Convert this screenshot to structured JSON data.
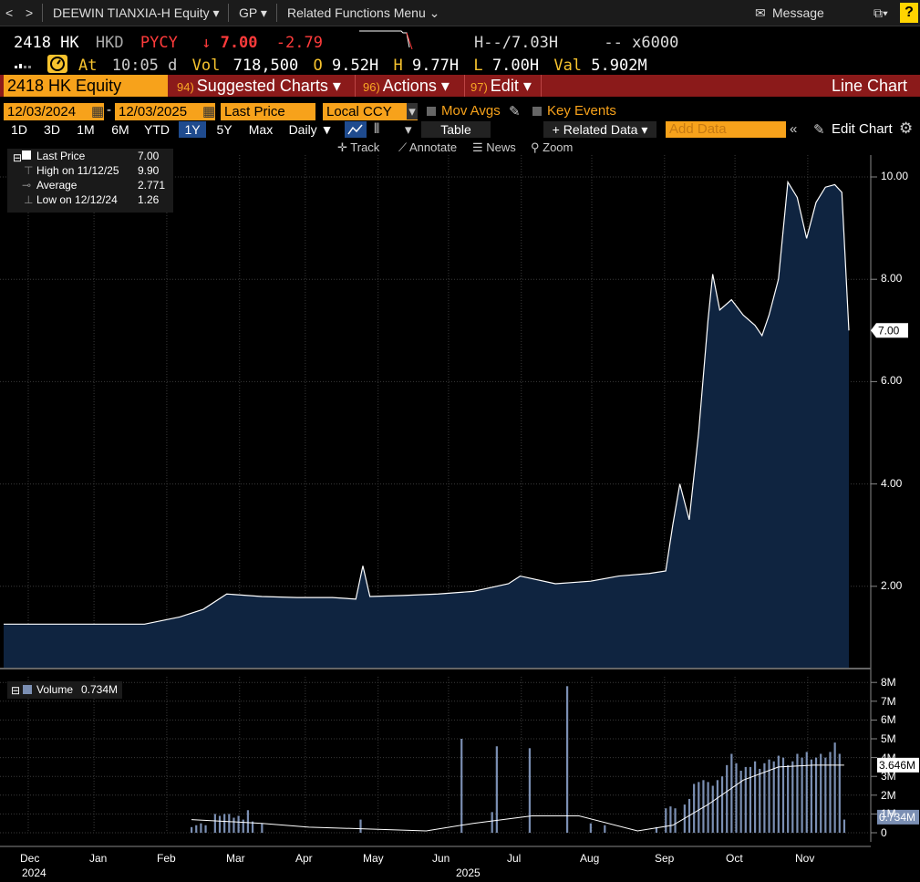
{
  "topbar": {
    "back": "<",
    "forward": ">",
    "security": "DEEWIN TIANXIA-H Equity ▾",
    "gp": "GP ▾",
    "related_menu": "Related Functions Menu ⌄",
    "message": "Message",
    "help": "?"
  },
  "quote": {
    "ticker": "2418 HK",
    "currency": "HKD",
    "pycy": "PYCY",
    "arrow": "↓",
    "last": "7.00",
    "change": "-2.79",
    "h_label": "H--",
    "bid_ask": "/7.03H",
    "size_label": "--",
    "size": "x6000",
    "at_label": "At",
    "time": "10:05 d",
    "vol_label": "Vol",
    "vol": "718,500",
    "o_label": "O",
    "open": "9.52H",
    "hi_label": "H",
    "high": "9.77H",
    "l_label": "L",
    "low": "7.00H",
    "val_label": "Val",
    "val": "5.902M"
  },
  "toolbar": {
    "equity": "2418 HK Equity",
    "suggested_num": "94)",
    "suggested": "Suggested Charts ▾",
    "actions_num": "96)",
    "actions": "Actions ▾",
    "edit_num": "97)",
    "edit": "Edit ▾",
    "chart_type": "Line Chart"
  },
  "controls": {
    "start_date": "12/03/2024",
    "end_date": "12/03/2025",
    "field": "Last Price",
    "currency": "Local CCY",
    "mov_avgs": "Mov Avgs",
    "key_events": "Key Events",
    "table": "Table",
    "related_data": "+ Related Data ▾",
    "add_data_placeholder": "Add Data",
    "edit_chart": "Edit Chart",
    "periodicity": "Daily ▼",
    "ranges": [
      "1D",
      "3D",
      "1M",
      "6M",
      "YTD",
      "1Y",
      "5Y",
      "Max"
    ],
    "active_range": "1Y"
  },
  "tools": {
    "track": "Track",
    "annotate": "Annotate",
    "news": "News",
    "zoom": "Zoom"
  },
  "legend": {
    "last_price_label": "Last Price",
    "last_price": "7.00",
    "high_label": "High on 11/12/25",
    "high": "9.90",
    "average_label": "Average",
    "average": "2.771",
    "low_label": "Low on 12/12/24",
    "low": "1.26",
    "volume_label": "Volume",
    "volume": "0.734M"
  },
  "colors": {
    "area_fill": "#0f2440",
    "line": "#ffffff",
    "volume_bar": "#7b8fb3",
    "orange": "#f7a21b",
    "redbar": "#8b1a1a",
    "change_red": "#ff3b3b",
    "quote_yellow": "#f7c32e"
  },
  "chart_data": [
    {
      "type": "area",
      "series": [
        {
          "name": "Last Price"
        }
      ],
      "x_months": [
        "Dec",
        "Jan",
        "Feb",
        "Mar",
        "Apr",
        "May",
        "Jun",
        "Jul",
        "Aug",
        "Sep",
        "Oct",
        "Nov"
      ],
      "x_years": [
        "2024",
        "2025"
      ],
      "ylim": [
        0.5,
        10.5
      ],
      "yticks": [
        2.0,
        4.0,
        6.0,
        8.0,
        10.0
      ],
      "ytick_labels": [
        "2.00",
        "4.00",
        "6.00",
        "8.00",
        "10.00"
      ],
      "last_value_label": "7.00",
      "points": [
        [
          0,
          1.26
        ],
        [
          30,
          1.26
        ],
        [
          60,
          1.26
        ],
        [
          75,
          1.4
        ],
        [
          85,
          1.55
        ],
        [
          95,
          1.85
        ],
        [
          110,
          1.8
        ],
        [
          125,
          1.78
        ],
        [
          140,
          1.78
        ],
        [
          150,
          1.75
        ],
        [
          153,
          2.4
        ],
        [
          156,
          1.8
        ],
        [
          170,
          1.82
        ],
        [
          185,
          1.85
        ],
        [
          200,
          1.9
        ],
        [
          215,
          2.05
        ],
        [
          220,
          2.2
        ],
        [
          235,
          2.05
        ],
        [
          250,
          2.1
        ],
        [
          262,
          2.2
        ],
        [
          275,
          2.25
        ],
        [
          282,
          2.3
        ],
        [
          285,
          3.2
        ],
        [
          288,
          4.0
        ],
        [
          292,
          3.3
        ],
        [
          296,
          5.0
        ],
        [
          300,
          7.2
        ],
        [
          302,
          8.1
        ],
        [
          305,
          7.4
        ],
        [
          310,
          7.6
        ],
        [
          315,
          7.3
        ],
        [
          320,
          7.1
        ],
        [
          323,
          6.9
        ],
        [
          326,
          7.3
        ],
        [
          330,
          8.0
        ],
        [
          334,
          9.9
        ],
        [
          338,
          9.6
        ],
        [
          342,
          8.8
        ],
        [
          346,
          9.5
        ],
        [
          350,
          9.8
        ],
        [
          354,
          9.85
        ],
        [
          357,
          9.7
        ],
        [
          360,
          7.0
        ]
      ]
    },
    {
      "type": "bar",
      "series": [
        {
          "name": "Volume"
        }
      ],
      "ylim": [
        0,
        8.5
      ],
      "ytick_labels": [
        "0",
        "1M",
        "2M",
        "3M",
        "4M",
        "5M",
        "6M",
        "7M",
        "8M"
      ],
      "yticks": [
        0,
        1,
        2,
        3,
        4,
        5,
        6,
        7,
        8
      ],
      "last_value_label": "0.734M",
      "avg_label": "3.646M",
      "bars": [
        [
          80,
          0.3
        ],
        [
          82,
          0.4
        ],
        [
          84,
          0.5
        ],
        [
          86,
          0.4
        ],
        [
          90,
          1.0
        ],
        [
          92,
          0.9
        ],
        [
          94,
          1.0
        ],
        [
          96,
          1.0
        ],
        [
          98,
          0.8
        ],
        [
          100,
          0.9
        ],
        [
          102,
          0.7
        ],
        [
          104,
          1.2
        ],
        [
          106,
          0.6
        ],
        [
          110,
          0.5
        ],
        [
          152,
          0.7
        ],
        [
          195,
          5.0
        ],
        [
          208,
          1.1
        ],
        [
          210,
          4.6
        ],
        [
          224,
          4.5
        ],
        [
          240,
          7.8
        ],
        [
          250,
          0.5
        ],
        [
          256,
          0.4
        ],
        [
          278,
          0.3
        ],
        [
          282,
          1.3
        ],
        [
          284,
          1.4
        ],
        [
          286,
          1.3
        ],
        [
          290,
          1.5
        ],
        [
          292,
          1.8
        ],
        [
          294,
          2.6
        ],
        [
          296,
          2.7
        ],
        [
          298,
          2.8
        ],
        [
          300,
          2.7
        ],
        [
          302,
          2.5
        ],
        [
          304,
          2.8
        ],
        [
          306,
          3.0
        ],
        [
          308,
          3.6
        ],
        [
          310,
          4.2
        ],
        [
          312,
          3.7
        ],
        [
          314,
          3.3
        ],
        [
          316,
          3.5
        ],
        [
          318,
          3.5
        ],
        [
          320,
          3.8
        ],
        [
          322,
          3.4
        ],
        [
          324,
          3.7
        ],
        [
          326,
          3.9
        ],
        [
          328,
          3.8
        ],
        [
          330,
          4.1
        ],
        [
          332,
          4.0
        ],
        [
          334,
          3.6
        ],
        [
          336,
          3.8
        ],
        [
          338,
          4.2
        ],
        [
          340,
          4.0
        ],
        [
          342,
          4.3
        ],
        [
          344,
          3.9
        ],
        [
          346,
          4.0
        ],
        [
          348,
          4.2
        ],
        [
          350,
          4.0
        ],
        [
          352,
          4.3
        ],
        [
          354,
          4.8
        ],
        [
          356,
          4.2
        ],
        [
          358,
          0.7
        ]
      ],
      "avg_line": [
        [
          80,
          0.7
        ],
        [
          110,
          0.5
        ],
        [
          130,
          0.3
        ],
        [
          180,
          0.1
        ],
        [
          200,
          0.5
        ],
        [
          225,
          0.9
        ],
        [
          245,
          0.9
        ],
        [
          270,
          0.1
        ],
        [
          285,
          0.4
        ],
        [
          300,
          1.5
        ],
        [
          315,
          2.8
        ],
        [
          330,
          3.5
        ],
        [
          345,
          3.6
        ],
        [
          358,
          3.6
        ]
      ]
    }
  ]
}
